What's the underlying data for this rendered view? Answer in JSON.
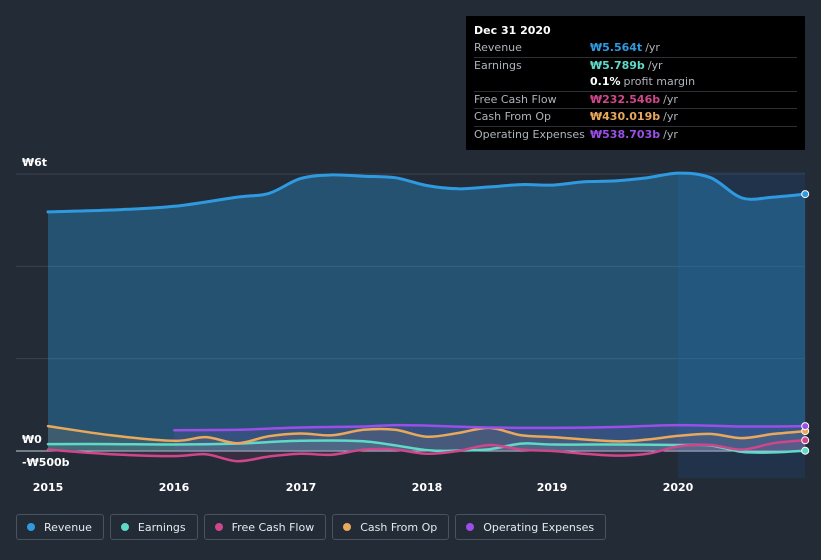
{
  "tooltip": {
    "date": "Dec 31 2020",
    "rows": [
      {
        "label": "Revenue",
        "value": "₩5.564t",
        "unit": "/yr",
        "color": "#2f9ae0"
      },
      {
        "label": "Earnings",
        "value": "₩5.789b",
        "unit": "/yr",
        "color": "#5fd9c8"
      },
      {
        "label": "",
        "value": "0.1%",
        "unit": "profit margin",
        "color": "#ffffff"
      },
      {
        "label": "Free Cash Flow",
        "value": "₩232.546b",
        "unit": "/yr",
        "color": "#d0468b"
      },
      {
        "label": "Cash From Op",
        "value": "₩430.019b",
        "unit": "/yr",
        "color": "#e8a95c"
      },
      {
        "label": "Operating Expenses",
        "value": "₩538.703b",
        "unit": "/yr",
        "color": "#9b4ee8"
      }
    ]
  },
  "legend": [
    {
      "label": "Revenue",
      "color": "#2f9ae0"
    },
    {
      "label": "Earnings",
      "color": "#5fd9c8"
    },
    {
      "label": "Free Cash Flow",
      "color": "#d0468b"
    },
    {
      "label": "Cash From Op",
      "color": "#e8a95c"
    },
    {
      "label": "Operating Expenses",
      "color": "#9b4ee8"
    }
  ],
  "chart_data": {
    "type": "line",
    "y_tick_labels": [
      "₩6t",
      "₩0",
      "-₩500b"
    ],
    "x_tick_labels": [
      "2015",
      "2016",
      "2017",
      "2018",
      "2019",
      "2020"
    ],
    "ylim": [
      -500,
      6000
    ],
    "y_unit": "₩ billions",
    "series": [
      {
        "name": "Revenue",
        "color": "#2f9ae0",
        "area": true,
        "points": [
          [
            2015.0,
            5180
          ],
          [
            2015.5,
            5220
          ],
          [
            2016.0,
            5300
          ],
          [
            2016.5,
            5500
          ],
          [
            2016.75,
            5580
          ],
          [
            2017.0,
            5900
          ],
          [
            2017.25,
            5980
          ],
          [
            2017.5,
            5950
          ],
          [
            2017.75,
            5920
          ],
          [
            2018.0,
            5750
          ],
          [
            2018.25,
            5680
          ],
          [
            2018.5,
            5720
          ],
          [
            2018.75,
            5770
          ],
          [
            2019.0,
            5760
          ],
          [
            2019.25,
            5830
          ],
          [
            2019.5,
            5850
          ],
          [
            2019.75,
            5920
          ],
          [
            2020.0,
            6020
          ],
          [
            2020.25,
            5920
          ],
          [
            2020.5,
            5480
          ],
          [
            2020.75,
            5500
          ],
          [
            2021.0,
            5564
          ]
        ]
      },
      {
        "name": "Earnings",
        "color": "#5fd9c8",
        "points": [
          [
            2015.0,
            150
          ],
          [
            2015.5,
            150
          ],
          [
            2016.0,
            140
          ],
          [
            2016.5,
            160
          ],
          [
            2017.0,
            220
          ],
          [
            2017.5,
            210
          ],
          [
            2018.0,
            20
          ],
          [
            2018.25,
            10
          ],
          [
            2018.5,
            40
          ],
          [
            2018.75,
            160
          ],
          [
            2019.0,
            140
          ],
          [
            2019.5,
            140
          ],
          [
            2020.0,
            130
          ],
          [
            2020.25,
            120
          ],
          [
            2020.5,
            -20
          ],
          [
            2020.75,
            -30
          ],
          [
            2021.0,
            5.8
          ]
        ]
      },
      {
        "name": "Free Cash Flow",
        "color": "#d0468b",
        "points": [
          [
            2015.0,
            30
          ],
          [
            2015.5,
            -70
          ],
          [
            2016.0,
            -110
          ],
          [
            2016.25,
            -70
          ],
          [
            2016.5,
            -220
          ],
          [
            2016.75,
            -120
          ],
          [
            2017.0,
            -60
          ],
          [
            2017.25,
            -80
          ],
          [
            2017.5,
            30
          ],
          [
            2017.75,
            30
          ],
          [
            2018.0,
            -60
          ],
          [
            2018.25,
            0
          ],
          [
            2018.5,
            130
          ],
          [
            2018.75,
            30
          ],
          [
            2019.0,
            0
          ],
          [
            2019.25,
            -60
          ],
          [
            2019.5,
            -100
          ],
          [
            2019.75,
            -60
          ],
          [
            2020.0,
            100
          ],
          [
            2020.25,
            130
          ],
          [
            2020.5,
            30
          ],
          [
            2020.75,
            170
          ],
          [
            2021.0,
            232.5
          ]
        ]
      },
      {
        "name": "Cash From Op",
        "color": "#e8a95c",
        "points": [
          [
            2015.0,
            540
          ],
          [
            2015.5,
            340
          ],
          [
            2016.0,
            220
          ],
          [
            2016.25,
            300
          ],
          [
            2016.5,
            170
          ],
          [
            2016.75,
            320
          ],
          [
            2017.0,
            380
          ],
          [
            2017.25,
            340
          ],
          [
            2017.5,
            460
          ],
          [
            2017.75,
            460
          ],
          [
            2018.0,
            310
          ],
          [
            2018.25,
            390
          ],
          [
            2018.5,
            500
          ],
          [
            2018.75,
            340
          ],
          [
            2019.0,
            300
          ],
          [
            2019.5,
            210
          ],
          [
            2019.75,
            250
          ],
          [
            2020.0,
            330
          ],
          [
            2020.25,
            370
          ],
          [
            2020.5,
            280
          ],
          [
            2020.75,
            370
          ],
          [
            2021.0,
            430
          ]
        ]
      },
      {
        "name": "Operating Expenses",
        "color": "#9b4ee8",
        "points": [
          [
            2016.0,
            450
          ],
          [
            2016.5,
            460
          ],
          [
            2017.0,
            510
          ],
          [
            2017.5,
            530
          ],
          [
            2017.75,
            560
          ],
          [
            2018.0,
            550
          ],
          [
            2018.5,
            510
          ],
          [
            2019.0,
            500
          ],
          [
            2019.5,
            520
          ],
          [
            2020.0,
            560
          ],
          [
            2020.5,
            530
          ],
          [
            2021.0,
            538.7
          ]
        ]
      }
    ]
  }
}
